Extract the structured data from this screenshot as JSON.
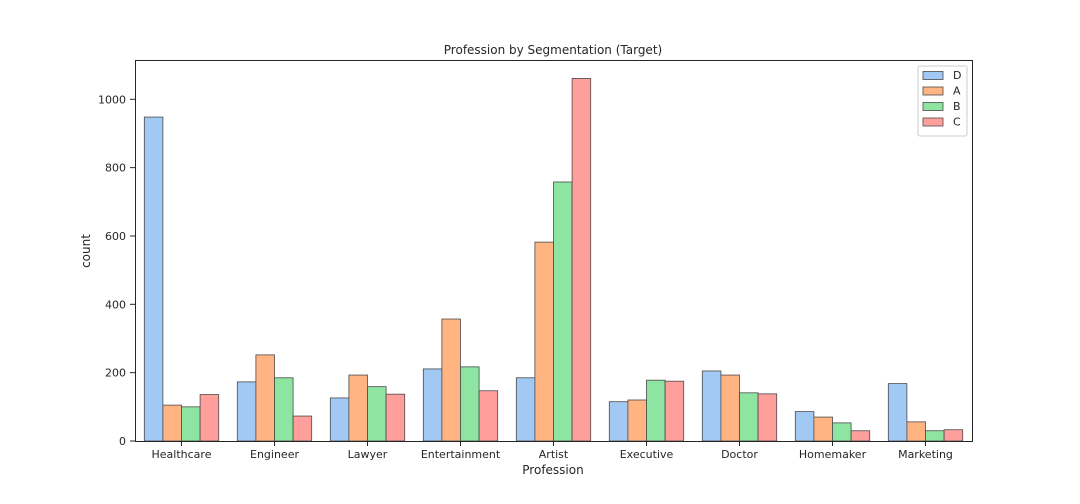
{
  "chart_data": {
    "type": "bar",
    "title": "Profession by Segmentation (Target)",
    "xlabel": "Profession",
    "ylabel": "count",
    "ylim": [
      0,
      1115
    ],
    "yticks": [
      0,
      200,
      400,
      600,
      800,
      1000
    ],
    "categories": [
      "Healthcare",
      "Engineer",
      "Lawyer",
      "Entertainment",
      "Artist",
      "Executive",
      "Doctor",
      "Homemaker",
      "Marketing"
    ],
    "series": [
      {
        "name": "D",
        "color": "#a1c9f4",
        "values": [
          948,
          173,
          126,
          211,
          185,
          115,
          205,
          86,
          168
        ]
      },
      {
        "name": "A",
        "color": "#ffb482",
        "values": [
          105,
          252,
          193,
          357,
          582,
          120,
          193,
          70,
          56
        ]
      },
      {
        "name": "B",
        "color": "#8de5a1",
        "values": [
          100,
          185,
          159,
          217,
          758,
          178,
          141,
          53,
          30
        ]
      },
      {
        "name": "C",
        "color": "#ff9f9b",
        "values": [
          136,
          73,
          137,
          147,
          1061,
          175,
          138,
          30,
          33
        ]
      }
    ],
    "legend_position": "top-right",
    "grid": false
  }
}
